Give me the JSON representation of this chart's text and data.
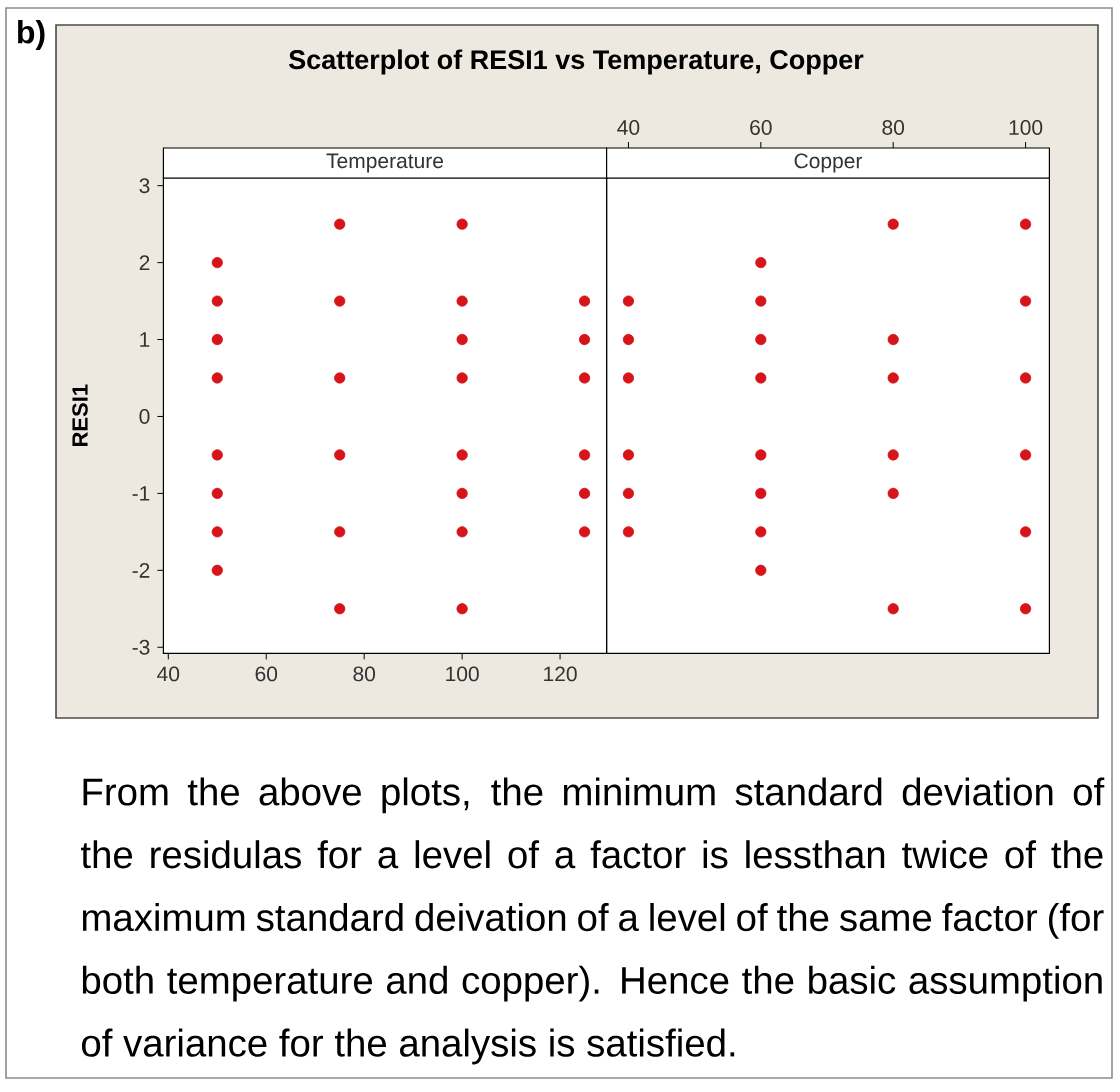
{
  "chart_data": [
    {
      "type": "scatter",
      "title": "Scatterplot of RESI1 vs Temperature, Copper",
      "subtitle": "Temperature",
      "ylabel": "RESI1",
      "marker": "circle",
      "color": "#d7141a",
      "x": [
        50,
        50,
        50,
        50,
        50,
        50,
        50,
        50,
        75,
        75,
        75,
        75,
        75,
        75,
        100,
        100,
        100,
        100,
        100,
        100,
        100,
        100,
        125,
        125,
        125,
        125,
        125,
        125
      ],
      "values": [
        2,
        1.5,
        1,
        0.5,
        -0.5,
        -1,
        -1.5,
        -2,
        2.5,
        1.5,
        0.5,
        -0.5,
        -1.5,
        -2.5,
        2.5,
        1.5,
        1,
        0.5,
        -0.5,
        -1,
        -1.5,
        -2.5,
        1.5,
        1,
        0.5,
        -0.5,
        -1,
        -1.5
      ],
      "xlim": [
        39,
        129.5
      ],
      "xticks": [
        40,
        60,
        80,
        100,
        120
      ],
      "ylim": [
        -3.08,
        3.1
      ],
      "yticks": [
        -3,
        -2,
        -1,
        0,
        1,
        2,
        3
      ],
      "annotations": [
        "b)",
        "From the above plots, the minimum standard deviation of the residulas for a level of a factor is lessthan twice of the maximum standard deivation of a level of the same factor (for both temperature and copper). Hence the basic assumption of variance for the analysis is satisfied."
      ]
    },
    {
      "type": "scatter",
      "subtitle": "Copper",
      "marker": "circle",
      "color": "#d7141a",
      "x": [
        40,
        40,
        40,
        40,
        40,
        40,
        60,
        60,
        60,
        60,
        60,
        60,
        60,
        60,
        80,
        80,
        80,
        80,
        80,
        80,
        100,
        100,
        100,
        100,
        100,
        100
      ],
      "values": [
        1.5,
        1,
        0.5,
        -0.5,
        -1,
        -1.5,
        2,
        1.5,
        1,
        0.5,
        -0.5,
        -1,
        -1.5,
        -2,
        2.5,
        1,
        0.5,
        -0.5,
        -1,
        -2.5,
        2.5,
        1.5,
        0.5,
        -0.5,
        -1.5,
        -2.5
      ],
      "xlim": [
        36.7,
        103.6
      ],
      "xticks": [
        40,
        60,
        80,
        100
      ],
      "ylim": [
        -3.08,
        3.1
      ],
      "tick_labels": "x"
    }
  ]
}
